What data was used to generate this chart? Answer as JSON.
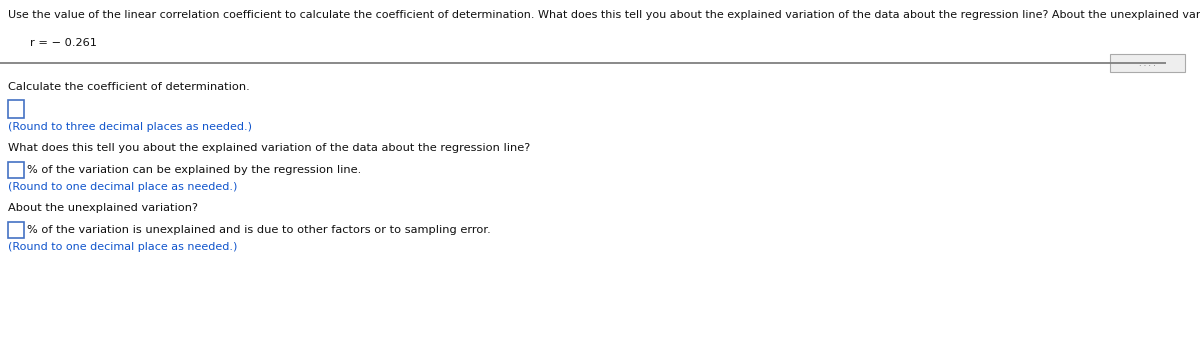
{
  "title_text": "Use the value of the linear correlation coefficient to calculate the coefficient of determination. What does this tell you about the explained variation of the data about the regression line? About the unexplained variation?",
  "r_label": "r = − 0.261",
  "q1": "Calculate the coefficient of determination.",
  "q1_hint": "(Round to three decimal places as needed.)",
  "q2": "What does this tell you about the explained variation of the data about the regression line?",
  "q2_line": "% of the variation can be explained by the regression line.",
  "q2_hint": "(Round to one decimal place as needed.)",
  "q3": "About the unexplained variation?",
  "q3_line": "% of the variation is unexplained and is due to other factors or to sampling error.",
  "q3_hint": "(Round to one decimal place as needed.)",
  "blue_hint_color": "#1155CC",
  "black_text_color": "#111111",
  "bg_color": "#ffffff",
  "box_edge_color": "#4472C4",
  "separator_color": "#808080"
}
